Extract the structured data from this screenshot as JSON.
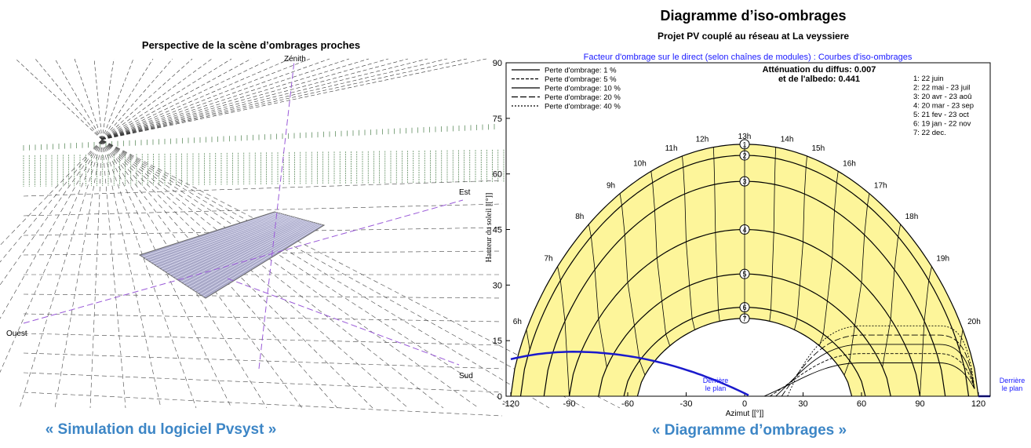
{
  "left": {
    "title": "Perspective de la scène d’ombrages proches",
    "axis_labels": {
      "zenith": "Zénith",
      "est": "Est",
      "ouest": "Ouest",
      "sud": "Sud"
    },
    "caption": "« Simulation du logiciel Pvsyst »"
  },
  "right": {
    "title": "Diagramme d’iso-ombrages",
    "subtitle": "Projet PV couplé au réseau at La veyssiere",
    "header": "Facteur d'ombrage sur le direct (selon chaînes de modules) : Courbes d'iso-ombrages",
    "legend": [
      "Perte d'ombrage: 1 %",
      "Perte d'ombrage: 5 %",
      "Perte d'ombrage: 10 %",
      "Perte d'ombrage: 20 %",
      "Perte d'ombrage: 40 %"
    ],
    "attenuation": [
      "Atténuation du diffus: 0.007",
      "et de l'albedo: 0.441"
    ],
    "dates": [
      "1: 22 juin",
      "2: 22 mai - 23 juil",
      "3: 20 avr - 23 aoû",
      "4: 20 mar - 23 sep",
      "5: 21 fev - 23 oct",
      "6: 19 jan - 22 nov",
      "7: 22 dec."
    ],
    "hours": [
      "6h",
      "7h",
      "8h",
      "9h",
      "10h",
      "11h",
      "12h",
      "13h",
      "14h",
      "15h",
      "16h",
      "17h",
      "18h",
      "19h",
      "20h"
    ],
    "curve_labels": [
      "1",
      "2",
      "3",
      "4",
      "5",
      "6",
      "7"
    ],
    "xticks": [
      "-120",
      "-90",
      "-60",
      "-30",
      "0",
      "30",
      "60",
      "90",
      "120"
    ],
    "yticks": [
      "0",
      "15",
      "30",
      "45",
      "60",
      "75",
      "90"
    ],
    "x_label": "Azimut [[°]]",
    "y_label": "Hauteur du soleil [[°]]",
    "behind_left": [
      "Derrière",
      "le plan"
    ],
    "behind_right": [
      "Derrière",
      "le plan"
    ],
    "caption": "« Diagramme d’ombrages »"
  }
}
